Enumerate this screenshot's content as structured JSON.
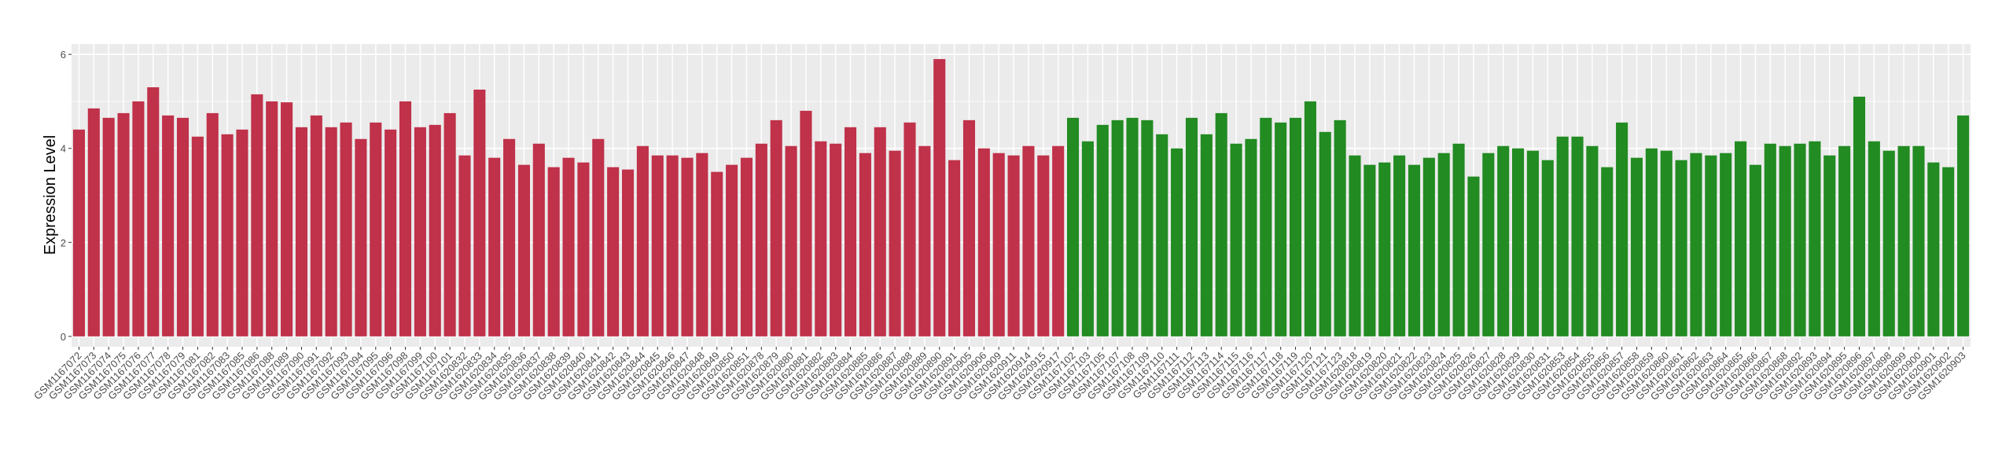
{
  "chart_data": {
    "type": "bar",
    "y_label": "Expression Level",
    "categories": [
      "GSM1167072",
      "GSM1167073",
      "GSM1167074",
      "GSM1167075",
      "GSM1167076",
      "GSM1167077",
      "GSM1167078",
      "GSM1167079",
      "GSM1167081",
      "GSM1167082",
      "GSM1167083",
      "GSM1167085",
      "GSM1167086",
      "GSM1167088",
      "GSM1167089",
      "GSM1167090",
      "GSM1167091",
      "GSM1167092",
      "GSM1167093",
      "GSM1167094",
      "GSM1167095",
      "GSM1167096",
      "GSM1167098",
      "GSM1167099",
      "GSM1167100",
      "GSM1167101",
      "GSM1620832",
      "GSM1620833",
      "GSM1620834",
      "GSM1620835",
      "GSM1620836",
      "GSM1620837",
      "GSM1620838",
      "GSM1620839",
      "GSM1620840",
      "GSM1620841",
      "GSM1620842",
      "GSM1620843",
      "GSM1620844",
      "GSM1620845",
      "GSM1620846",
      "GSM1620847",
      "GSM1620848",
      "GSM1620849",
      "GSM1620850",
      "GSM1620851",
      "GSM1620878",
      "GSM1620879",
      "GSM1620880",
      "GSM1620881",
      "GSM1620882",
      "GSM1620883",
      "GSM1620884",
      "GSM1620885",
      "GSM1620886",
      "GSM1620887",
      "GSM1620888",
      "GSM1620889",
      "GSM1620890",
      "GSM1620891",
      "GSM1620905",
      "GSM1620906",
      "GSM1620909",
      "GSM1620911",
      "GSM1620914",
      "GSM1620915",
      "GSM1620917",
      "GSM1167102",
      "GSM1167103",
      "GSM1167105",
      "GSM1167107",
      "GSM1167108",
      "GSM1167109",
      "GSM1167110",
      "GSM1167111",
      "GSM1167112",
      "GSM1167113",
      "GSM1167114",
      "GSM1167115",
      "GSM1167116",
      "GSM1167117",
      "GSM1167118",
      "GSM1167119",
      "GSM1167120",
      "GSM1167121",
      "GSM1167123",
      "GSM1620818",
      "GSM1620819",
      "GSM1620820",
      "GSM1620821",
      "GSM1620822",
      "GSM1620823",
      "GSM1620824",
      "GSM1620825",
      "GSM1620826",
      "GSM1620827",
      "GSM1620828",
      "GSM1620829",
      "GSM1620830",
      "GSM1620831",
      "GSM1620853",
      "GSM1620854",
      "GSM1620855",
      "GSM1620856",
      "GSM1620857",
      "GSM1620858",
      "GSM1620859",
      "GSM1620860",
      "GSM1620861",
      "GSM1620862",
      "GSM1620863",
      "GSM1620864",
      "GSM1620865",
      "GSM1620866",
      "GSM1620867",
      "GSM1620868",
      "GSM1620892",
      "GSM1620893",
      "GSM1620894",
      "GSM1620895",
      "GSM1620896",
      "GSM1620897",
      "GSM1620898",
      "GSM1620899",
      "GSM1620900",
      "GSM1620901",
      "GSM1620902",
      "GSM1620903"
    ],
    "values": [
      4.4,
      4.85,
      4.65,
      4.75,
      5.0,
      5.3,
      4.7,
      4.65,
      4.25,
      4.75,
      4.3,
      4.4,
      5.15,
      5.0,
      4.98,
      4.45,
      4.7,
      4.45,
      4.55,
      4.2,
      4.55,
      4.4,
      5.0,
      4.45,
      4.5,
      4.75,
      3.85,
      5.25,
      3.8,
      4.2,
      3.65,
      4.1,
      3.6,
      3.8,
      3.7,
      4.2,
      3.6,
      3.55,
      4.05,
      3.85,
      3.85,
      3.8,
      3.9,
      3.5,
      3.65,
      3.8,
      4.1,
      4.6,
      4.05,
      4.8,
      4.15,
      4.1,
      4.45,
      3.9,
      4.45,
      3.95,
      4.55,
      4.05,
      5.9,
      3.75,
      4.6,
      4.0,
      3.9,
      3.85,
      4.05,
      3.85,
      4.05,
      4.65,
      4.15,
      4.5,
      4.6,
      4.65,
      4.6,
      4.3,
      4.0,
      4.65,
      4.3,
      4.75,
      4.1,
      4.2,
      4.65,
      4.55,
      4.65,
      5.0,
      4.35,
      4.6,
      3.85,
      3.65,
      3.7,
      3.85,
      3.65,
      3.8,
      3.9,
      4.1,
      3.4,
      3.9,
      4.05,
      4.0,
      3.95,
      3.75,
      4.25,
      4.25,
      4.05,
      3.6,
      4.55,
      3.8,
      4.0,
      3.95,
      3.75,
      3.9,
      3.85,
      3.9,
      4.15,
      3.65,
      4.1,
      4.05,
      4.1,
      4.15,
      3.85,
      4.05,
      5.1,
      4.15,
      3.95,
      4.05,
      4.05,
      3.7,
      3.6,
      4.7
    ],
    "colors": [
      "#c0314a",
      "#c0314a",
      "#c0314a",
      "#c0314a",
      "#c0314a",
      "#c0314a",
      "#c0314a",
      "#c0314a",
      "#c0314a",
      "#c0314a",
      "#c0314a",
      "#c0314a",
      "#c0314a",
      "#c0314a",
      "#c0314a",
      "#c0314a",
      "#c0314a",
      "#c0314a",
      "#c0314a",
      "#c0314a",
      "#c0314a",
      "#c0314a",
      "#c0314a",
      "#c0314a",
      "#c0314a",
      "#c0314a",
      "#c0314a",
      "#c0314a",
      "#c0314a",
      "#c0314a",
      "#c0314a",
      "#c0314a",
      "#c0314a",
      "#c0314a",
      "#c0314a",
      "#c0314a",
      "#c0314a",
      "#c0314a",
      "#c0314a",
      "#c0314a",
      "#c0314a",
      "#c0314a",
      "#c0314a",
      "#c0314a",
      "#c0314a",
      "#c0314a",
      "#c0314a",
      "#c0314a",
      "#c0314a",
      "#c0314a",
      "#c0314a",
      "#c0314a",
      "#c0314a",
      "#c0314a",
      "#c0314a",
      "#c0314a",
      "#c0314a",
      "#c0314a",
      "#c0314a",
      "#c0314a",
      "#c0314a",
      "#c0314a",
      "#c0314a",
      "#c0314a",
      "#c0314a",
      "#c0314a",
      "#c0314a",
      "#228b22",
      "#228b22",
      "#228b22",
      "#228b22",
      "#228b22",
      "#228b22",
      "#228b22",
      "#228b22",
      "#228b22",
      "#228b22",
      "#228b22",
      "#228b22",
      "#228b22",
      "#228b22",
      "#228b22",
      "#228b22",
      "#228b22",
      "#228b22",
      "#228b22",
      "#228b22",
      "#228b22",
      "#228b22",
      "#228b22",
      "#228b22",
      "#228b22",
      "#228b22",
      "#228b22",
      "#228b22",
      "#228b22",
      "#228b22",
      "#228b22",
      "#228b22",
      "#228b22",
      "#228b22",
      "#228b22",
      "#228b22",
      "#228b22",
      "#228b22",
      "#228b22",
      "#228b22",
      "#228b22",
      "#228b22",
      "#228b22",
      "#228b22",
      "#228b22",
      "#228b22",
      "#228b22",
      "#228b22",
      "#228b22",
      "#228b22",
      "#228b22",
      "#228b22",
      "#228b22",
      "#228b22",
      "#228b22",
      "#228b22",
      "#228b22",
      "#228b22",
      "#228b22",
      "#228b22",
      "#228b22"
    ],
    "ylim": [
      -0.22,
      6.22
    ],
    "yticks": [
      0,
      2,
      4,
      6
    ],
    "grid": true
  }
}
